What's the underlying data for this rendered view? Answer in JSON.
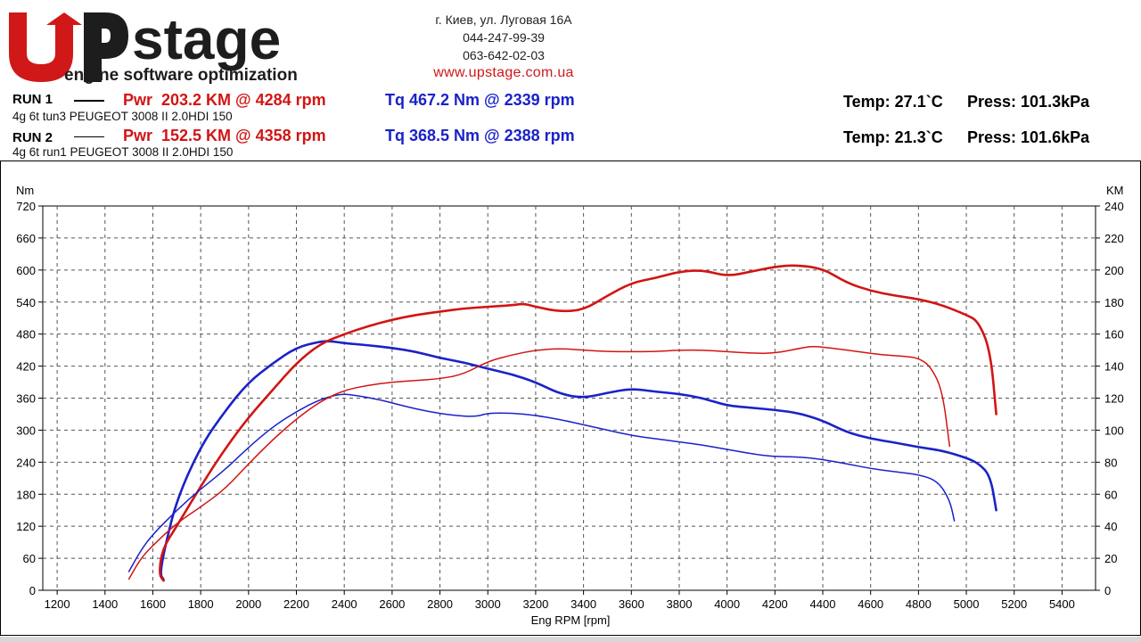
{
  "header": {
    "logo_text": "stage",
    "logo_tagline": "engine software optimization",
    "address": "г. Киев, ул. Луговая 16А",
    "phone1": "044-247-99-39",
    "phone2": "063-642-02-03",
    "website": "www.upstage.com.ua"
  },
  "runs": [
    {
      "label": "RUN 1",
      "description": "4g 6t tun3 PEUGEOT 3008 II 2.0HDI 150",
      "power_label": "Pwr  203.2 KM @ 4284 rpm",
      "torque_label": "Tq 467.2 Nm @ 2339 rpm",
      "temp": "Temp: 27.1`C",
      "press": "Press: 101.3kPa"
    },
    {
      "label": "RUN 2",
      "description": "4g 6t run1 PEUGEOT 3008 II 2.0HDI 150",
      "power_label": "Pwr  152.5 KM @ 4358 rpm",
      "torque_label": "Tq 368.5 Nm @ 2388 rpm",
      "temp": "Temp: 21.3`C",
      "press": "Press: 101.6kPa"
    }
  ],
  "colors": {
    "power": "#d21414",
    "torque": "#1a22c8",
    "grid": "#555555"
  },
  "chart_data": {
    "type": "line",
    "title": "",
    "xlabel": "Eng RPM [rpm]",
    "ylabel_left": "Nm",
    "ylabel_right": "KM",
    "xlim": [
      1140,
      5540
    ],
    "ylim_left": [
      0,
      720
    ],
    "ylim_right": [
      0,
      240
    ],
    "x_ticks": [
      1200,
      1400,
      1600,
      1800,
      2000,
      2200,
      2400,
      2600,
      2800,
      3000,
      3200,
      3400,
      3600,
      3800,
      4000,
      4200,
      4400,
      4600,
      4800,
      5000,
      5200,
      5400
    ],
    "y_ticks_left": [
      0,
      60,
      120,
      180,
      240,
      300,
      360,
      420,
      480,
      540,
      600,
      660,
      720
    ],
    "y_ticks_right": [
      0,
      20,
      40,
      60,
      80,
      100,
      120,
      140,
      160,
      180,
      200,
      220,
      240
    ],
    "grid": true,
    "series": [
      {
        "name": "RUN 1 Torque",
        "axis": "left",
        "kind": "torque",
        "run": 1,
        "points": [
          [
            1645,
            20
          ],
          [
            1630,
            30
          ],
          [
            1650,
            80
          ],
          [
            1700,
            170
          ],
          [
            1800,
            270
          ],
          [
            1900,
            335
          ],
          [
            2000,
            390
          ],
          [
            2100,
            425
          ],
          [
            2200,
            455
          ],
          [
            2300,
            466
          ],
          [
            2339,
            467
          ],
          [
            2400,
            463
          ],
          [
            2500,
            459
          ],
          [
            2600,
            454
          ],
          [
            2700,
            447
          ],
          [
            2800,
            435
          ],
          [
            2900,
            427
          ],
          [
            3000,
            415
          ],
          [
            3100,
            405
          ],
          [
            3200,
            390
          ],
          [
            3300,
            368
          ],
          [
            3400,
            360
          ],
          [
            3500,
            370
          ],
          [
            3600,
            378
          ],
          [
            3700,
            372
          ],
          [
            3800,
            368
          ],
          [
            3900,
            360
          ],
          [
            4000,
            346
          ],
          [
            4100,
            342
          ],
          [
            4200,
            338
          ],
          [
            4300,
            332
          ],
          [
            4400,
            318
          ],
          [
            4500,
            296
          ],
          [
            4600,
            284
          ],
          [
            4700,
            277
          ],
          [
            4800,
            268
          ],
          [
            4900,
            262
          ],
          [
            5000,
            248
          ],
          [
            5050,
            238
          ],
          [
            5100,
            215
          ],
          [
            5125,
            150
          ]
        ]
      },
      {
        "name": "RUN 1 Power",
        "axis": "right",
        "kind": "power",
        "run": 1,
        "points": [
          [
            1645,
            6
          ],
          [
            1625,
            10
          ],
          [
            1640,
            26
          ],
          [
            1700,
            40
          ],
          [
            1800,
            65
          ],
          [
            1900,
            88
          ],
          [
            2000,
            108
          ],
          [
            2100,
            125
          ],
          [
            2200,
            142
          ],
          [
            2300,
            154
          ],
          [
            2400,
            160
          ],
          [
            2500,
            165
          ],
          [
            2600,
            169
          ],
          [
            2700,
            172
          ],
          [
            2800,
            174
          ],
          [
            2900,
            176
          ],
          [
            3000,
            177
          ],
          [
            3100,
            178
          ],
          [
            3150,
            179
          ],
          [
            3200,
            177
          ],
          [
            3300,
            174
          ],
          [
            3400,
            175
          ],
          [
            3500,
            184
          ],
          [
            3600,
            192
          ],
          [
            3700,
            195
          ],
          [
            3800,
            199
          ],
          [
            3900,
            200
          ],
          [
            4000,
            196
          ],
          [
            4100,
            199
          ],
          [
            4200,
            202
          ],
          [
            4284,
            203.2
          ],
          [
            4400,
            201
          ],
          [
            4500,
            192
          ],
          [
            4600,
            187
          ],
          [
            4700,
            184
          ],
          [
            4800,
            182
          ],
          [
            4900,
            178
          ],
          [
            5000,
            172
          ],
          [
            5050,
            168
          ],
          [
            5100,
            150
          ],
          [
            5125,
            110
          ]
        ]
      },
      {
        "name": "RUN 2 Torque",
        "axis": "left",
        "kind": "torque",
        "run": 2,
        "points": [
          [
            1500,
            35
          ],
          [
            1550,
            75
          ],
          [
            1600,
            105
          ],
          [
            1700,
            150
          ],
          [
            1800,
            190
          ],
          [
            1900,
            225
          ],
          [
            2000,
            268
          ],
          [
            2100,
            306
          ],
          [
            2200,
            335
          ],
          [
            2300,
            358
          ],
          [
            2388,
            368.5
          ],
          [
            2450,
            365
          ],
          [
            2550,
            357
          ],
          [
            2650,
            345
          ],
          [
            2750,
            335
          ],
          [
            2850,
            328
          ],
          [
            2950,
            325
          ],
          [
            3000,
            332
          ],
          [
            3100,
            332
          ],
          [
            3200,
            328
          ],
          [
            3300,
            320
          ],
          [
            3400,
            310
          ],
          [
            3500,
            300
          ],
          [
            3600,
            290
          ],
          [
            3700,
            284
          ],
          [
            3800,
            278
          ],
          [
            3900,
            272
          ],
          [
            4000,
            264
          ],
          [
            4100,
            256
          ],
          [
            4200,
            250
          ],
          [
            4300,
            250
          ],
          [
            4400,
            245
          ],
          [
            4500,
            237
          ],
          [
            4600,
            228
          ],
          [
            4700,
            222
          ],
          [
            4800,
            217
          ],
          [
            4880,
            205
          ],
          [
            4930,
            170
          ],
          [
            4950,
            130
          ]
        ]
      },
      {
        "name": "RUN 2 Power",
        "axis": "right",
        "kind": "power",
        "run": 2,
        "points": [
          [
            1500,
            7
          ],
          [
            1550,
            20
          ],
          [
            1600,
            28
          ],
          [
            1700,
            42
          ],
          [
            1800,
            52
          ],
          [
            1900,
            63
          ],
          [
            2000,
            79
          ],
          [
            2100,
            94
          ],
          [
            2200,
            107
          ],
          [
            2300,
            118
          ],
          [
            2400,
            125
          ],
          [
            2500,
            128
          ],
          [
            2600,
            130
          ],
          [
            2700,
            131
          ],
          [
            2800,
            132
          ],
          [
            2900,
            135
          ],
          [
            3000,
            143
          ],
          [
            3100,
            147
          ],
          [
            3200,
            150
          ],
          [
            3300,
            151
          ],
          [
            3400,
            150
          ],
          [
            3500,
            149
          ],
          [
            3600,
            149
          ],
          [
            3700,
            149
          ],
          [
            3800,
            150
          ],
          [
            3900,
            150
          ],
          [
            4000,
            149
          ],
          [
            4100,
            148
          ],
          [
            4200,
            148
          ],
          [
            4300,
            151
          ],
          [
            4358,
            152.5
          ],
          [
            4450,
            151
          ],
          [
            4550,
            149
          ],
          [
            4650,
            147
          ],
          [
            4750,
            146
          ],
          [
            4800,
            145
          ],
          [
            4850,
            140
          ],
          [
            4900,
            125
          ],
          [
            4930,
            90
          ]
        ]
      }
    ]
  }
}
